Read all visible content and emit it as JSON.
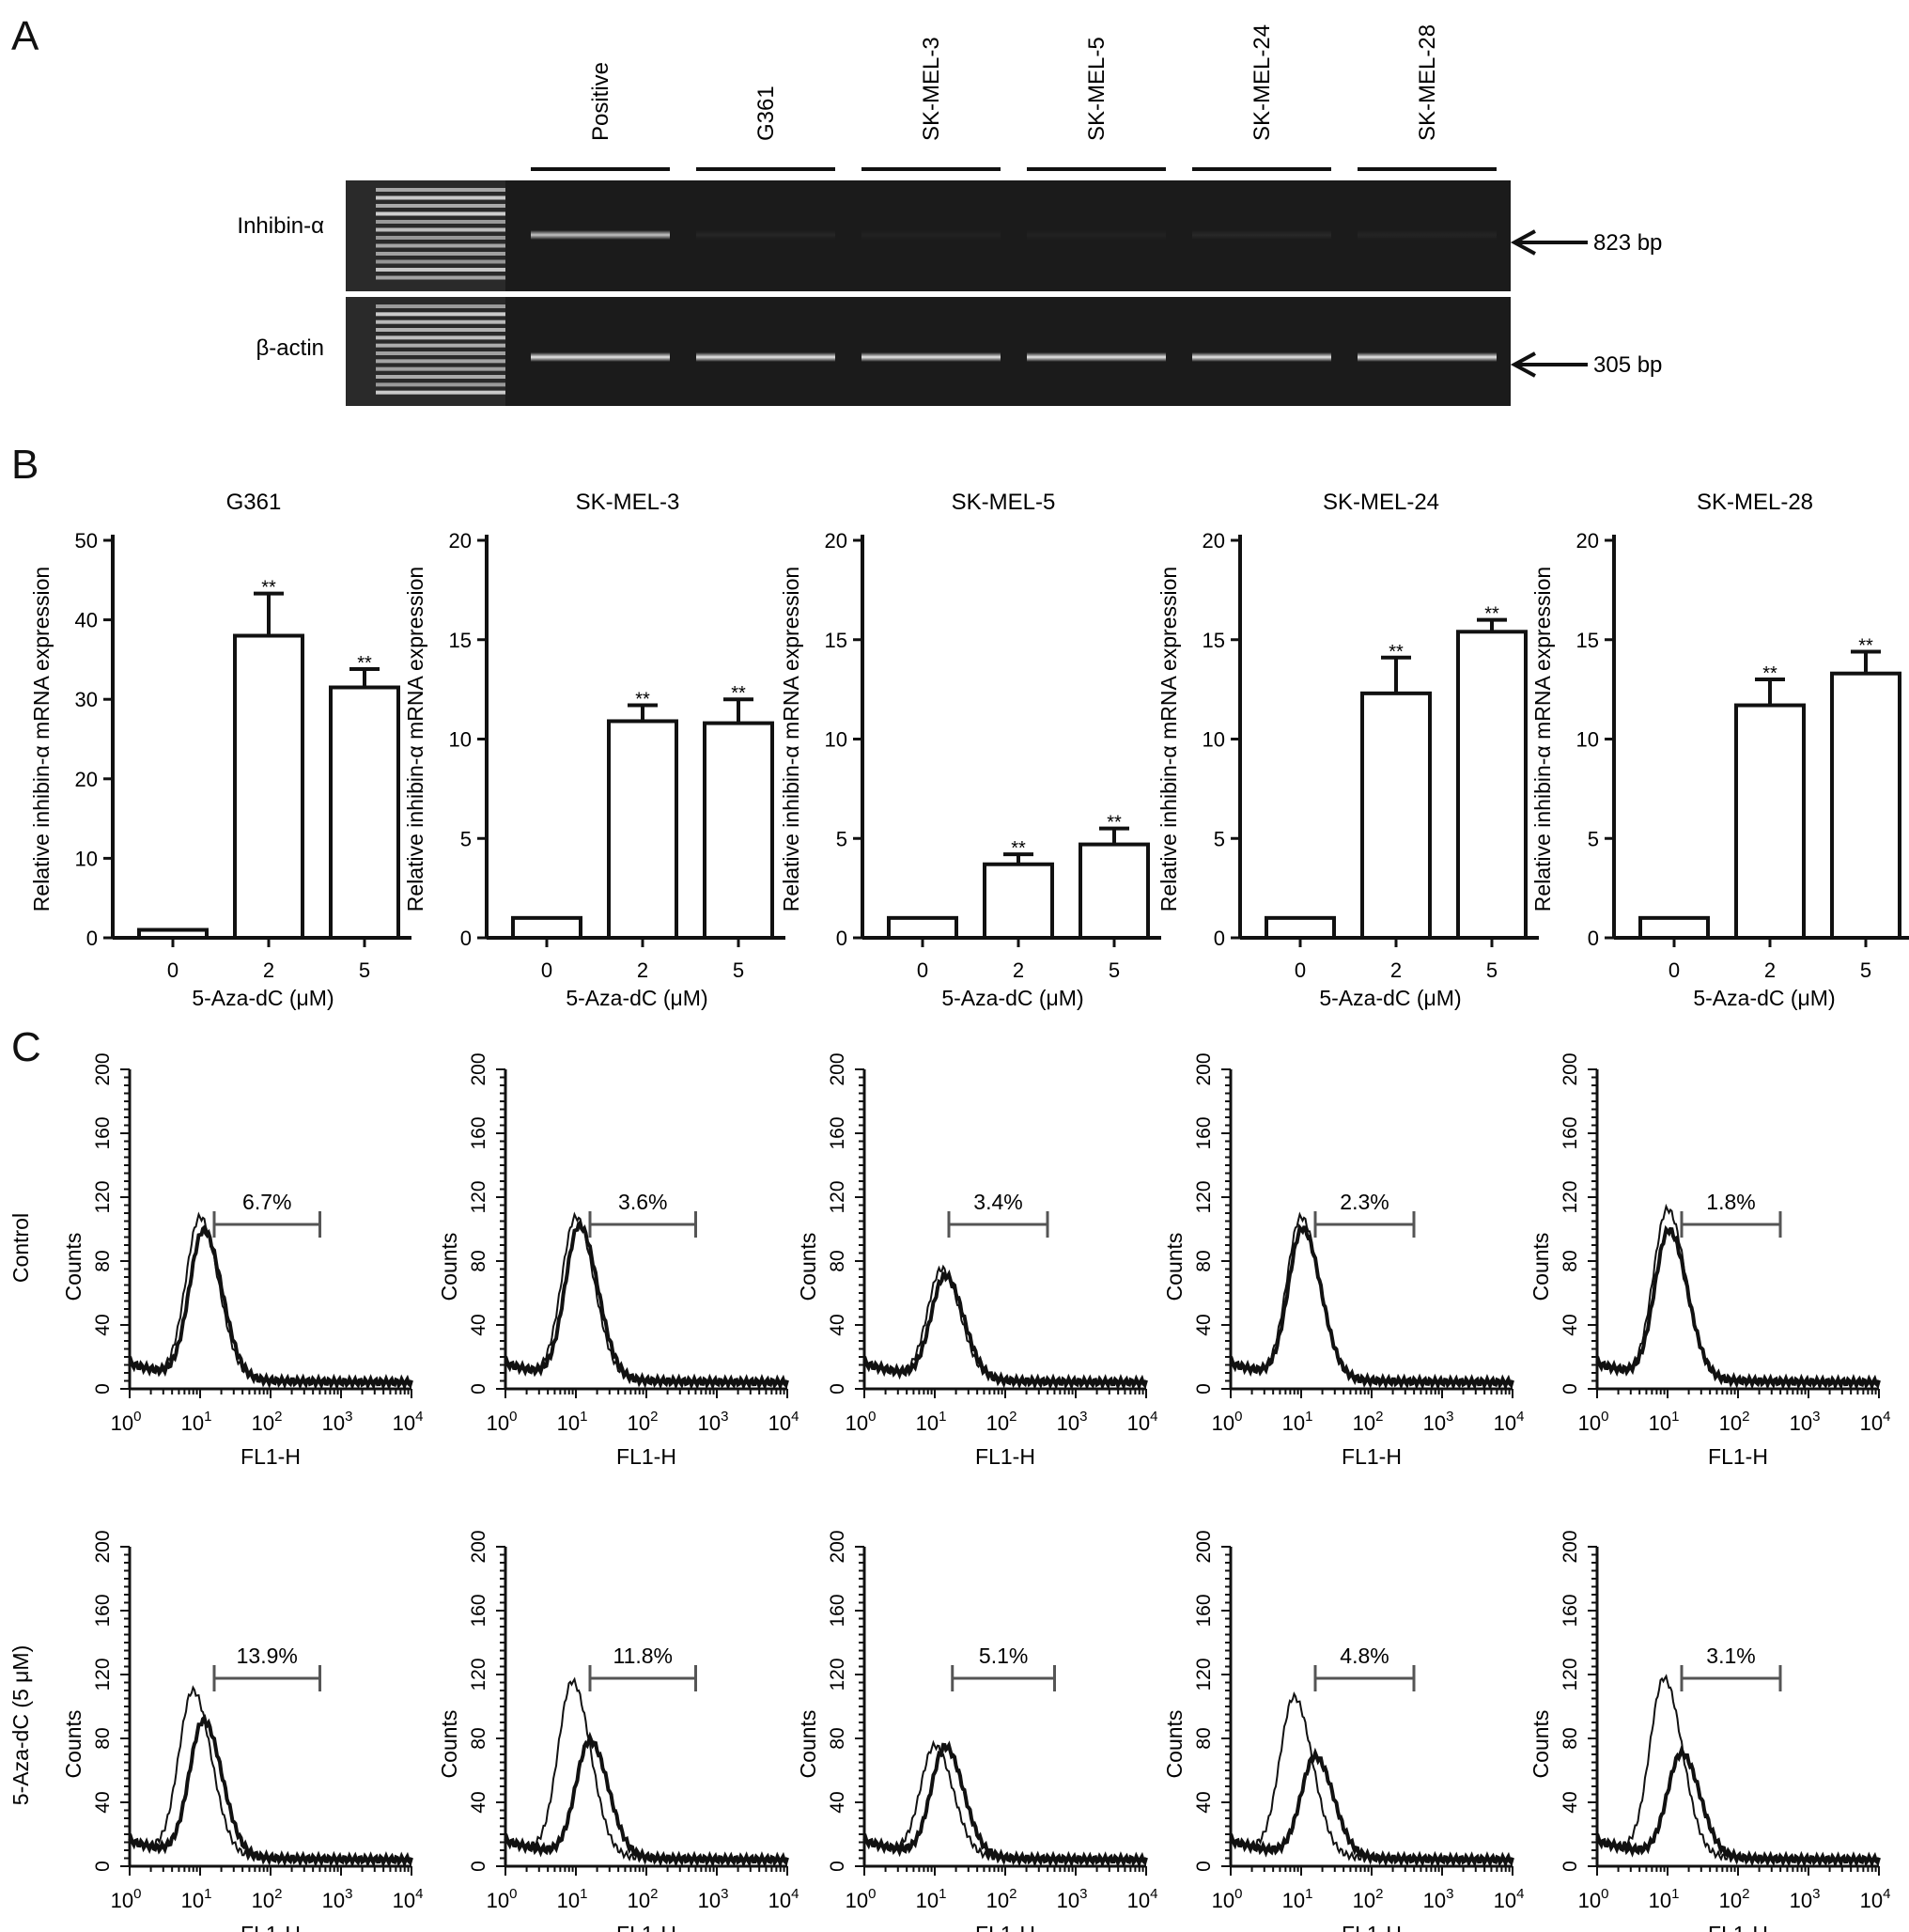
{
  "panels": {
    "A": "A",
    "B": "B",
    "C": "C"
  },
  "gel": {
    "lanes": [
      "Positive",
      "G361",
      "SK-MEL-3",
      "SK-MEL-5",
      "SK-MEL-24",
      "SK-MEL-28"
    ],
    "rows": [
      {
        "label": "Inhibin-α",
        "size": "823 bp",
        "band_intensity": [
          0.75,
          0.05,
          0.03,
          0.03,
          0.06,
          0.04
        ]
      },
      {
        "label": "β-actin",
        "size": "305 bp",
        "band_intensity": [
          0.9,
          0.9,
          0.9,
          0.9,
          0.9,
          0.9
        ]
      }
    ]
  },
  "chart_data": [
    {
      "type": "bar",
      "title": "G361",
      "categories": [
        "0",
        "2",
        "5"
      ],
      "values": [
        1.0,
        38.0,
        31.5
      ],
      "error": [
        0,
        5.3,
        2.3
      ],
      "significance": [
        "",
        "**",
        "**"
      ],
      "xlabel": "5-Aza-dC (μM)",
      "ylabel": "Relative inhibin-α mRNA expression",
      "ylim": [
        0,
        50
      ],
      "yticks": [
        0,
        10,
        20,
        30,
        40,
        50
      ]
    },
    {
      "type": "bar",
      "title": "SK-MEL-3",
      "categories": [
        "0",
        "2",
        "5"
      ],
      "values": [
        1.0,
        10.9,
        10.8
      ],
      "error": [
        0,
        0.8,
        1.2
      ],
      "significance": [
        "",
        "**",
        "**"
      ],
      "xlabel": "5-Aza-dC (μM)",
      "ylabel": "Relative inhibin-α mRNA expression",
      "ylim": [
        0,
        20
      ],
      "yticks": [
        0,
        5,
        10,
        15,
        20
      ]
    },
    {
      "type": "bar",
      "title": "SK-MEL-5",
      "categories": [
        "0",
        "2",
        "5"
      ],
      "values": [
        1.0,
        3.7,
        4.7
      ],
      "error": [
        0,
        0.5,
        0.8
      ],
      "significance": [
        "",
        "**",
        "**"
      ],
      "xlabel": "5-Aza-dC (μM)",
      "ylabel": "Relative inhibin-α mRNA expression",
      "ylim": [
        0,
        20
      ],
      "yticks": [
        0,
        5,
        10,
        15,
        20
      ]
    },
    {
      "type": "bar",
      "title": "SK-MEL-24",
      "categories": [
        "0",
        "2",
        "5"
      ],
      "values": [
        1.0,
        12.3,
        15.4
      ],
      "error": [
        0,
        1.8,
        0.6
      ],
      "significance": [
        "",
        "**",
        "**"
      ],
      "xlabel": "5-Aza-dC (μM)",
      "ylabel": "Relative inhibin-α mRNA expression",
      "ylim": [
        0,
        20
      ],
      "yticks": [
        0,
        5,
        10,
        15,
        20
      ]
    },
    {
      "type": "bar",
      "title": "SK-MEL-28",
      "categories": [
        "0",
        "2",
        "5"
      ],
      "values": [
        1.0,
        11.7,
        13.3
      ],
      "error": [
        0,
        1.3,
        1.1
      ],
      "significance": [
        "",
        "**",
        "**"
      ],
      "xlabel": "5-Aza-dC (μM)",
      "ylabel": "Relative inhibin-α mRNA expression",
      "ylim": [
        0,
        20
      ],
      "yticks": [
        0,
        5,
        10,
        15,
        20
      ]
    }
  ],
  "flow": {
    "xlabel": "FL1-H",
    "ylabel": "Counts",
    "yticks": [
      "0",
      "40",
      "80",
      "120",
      "160",
      "200"
    ],
    "xticks": [
      {
        "base": "10",
        "exp": "0"
      },
      {
        "base": "10",
        "exp": "1"
      },
      {
        "base": "10",
        "exp": "2"
      },
      {
        "base": "10",
        "exp": "3"
      },
      {
        "base": "10",
        "exp": "4"
      }
    ],
    "rows": [
      {
        "label": "Control",
        "histograms": [
          {
            "pct": "6.7%",
            "peak_log": 1.0,
            "peak": 100,
            "treated_log": 1.05,
            "treated_peak": 92,
            "gate_log": [
              1.2,
              2.7
            ]
          },
          {
            "pct": "3.6%",
            "peak_log": 1.0,
            "peak": 100,
            "treated_log": 1.05,
            "treated_peak": 95,
            "gate_log": [
              1.2,
              2.7
            ]
          },
          {
            "pct": "3.4%",
            "peak_log": 1.1,
            "peak": 68,
            "treated_log": 1.15,
            "treated_peak": 64,
            "gate_log": [
              1.2,
              2.6
            ]
          },
          {
            "pct": "2.3%",
            "peak_log": 1.0,
            "peak": 100,
            "treated_log": 1.02,
            "treated_peak": 93,
            "gate_log": [
              1.2,
              2.6
            ]
          },
          {
            "pct": "1.8%",
            "peak_log": 1.0,
            "peak": 105,
            "treated_log": 1.02,
            "treated_peak": 92,
            "gate_log": [
              1.2,
              2.6
            ]
          }
        ]
      },
      {
        "label": "5-Aza-dC (5 μM)",
        "histograms": [
          {
            "pct": "13.9%",
            "peak_log": 0.9,
            "peak": 102,
            "treated_log": 1.05,
            "treated_peak": 84,
            "gate_log": [
              1.2,
              2.7
            ]
          },
          {
            "pct": "11.8%",
            "peak_log": 0.95,
            "peak": 108,
            "treated_log": 1.2,
            "treated_peak": 72,
            "gate_log": [
              1.2,
              2.7
            ]
          },
          {
            "pct": "5.1%",
            "peak_log": 1.0,
            "peak": 68,
            "treated_log": 1.15,
            "treated_peak": 68,
            "gate_log": [
              1.25,
              2.7
            ]
          },
          {
            "pct": "4.8%",
            "peak_log": 0.9,
            "peak": 98,
            "treated_log": 1.2,
            "treated_peak": 62,
            "gate_log": [
              1.2,
              2.6
            ]
          },
          {
            "pct": "3.1%",
            "peak_log": 0.95,
            "peak": 110,
            "treated_log": 1.2,
            "treated_peak": 64,
            "gate_log": [
              1.2,
              2.6
            ]
          }
        ]
      }
    ]
  }
}
